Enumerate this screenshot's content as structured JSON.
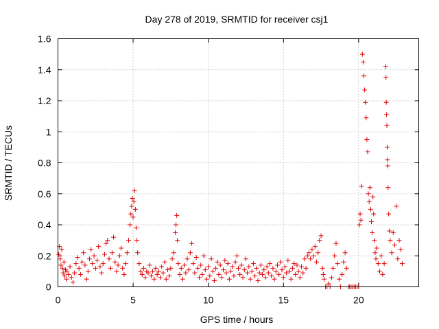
{
  "chart_data": {
    "type": "scatter",
    "title": "Day 278 of 2019, SRMTID for receiver csj1",
    "xlabel": "GPS time / hours",
    "ylabel": "SRMTID / TECUs",
    "xlim": [
      0,
      24
    ],
    "ylim": [
      0,
      1.6
    ],
    "xticks": [
      0,
      5,
      10,
      15,
      20
    ],
    "xtick_labels": [
      "0",
      "5",
      "10",
      "15",
      "20"
    ],
    "yticks": [
      0,
      0.2,
      0.4,
      0.6,
      0.8,
      1.0,
      1.2,
      1.4,
      1.6
    ],
    "ytick_labels": [
      "0",
      "0.2",
      "0.4",
      "0.6",
      "0.8",
      "1",
      "1.2",
      "1.4",
      "1.6"
    ],
    "grid": true,
    "marker": "plus",
    "color": "#e00000",
    "series": [
      {
        "name": "SRMTID",
        "points": [
          [
            0.05,
            0.21
          ],
          [
            0.1,
            0.26
          ],
          [
            0.15,
            0.18
          ],
          [
            0.2,
            0.14
          ],
          [
            0.25,
            0.24
          ],
          [
            0.3,
            0.12
          ],
          [
            0.35,
            0.09
          ],
          [
            0.4,
            0.16
          ],
          [
            0.45,
            0.07
          ],
          [
            0.5,
            0.11
          ],
          [
            0.55,
            0.05
          ],
          [
            0.6,
            0.1
          ],
          [
            0.7,
            0.08
          ],
          [
            0.8,
            0.13
          ],
          [
            0.9,
            0.06
          ],
          [
            1.0,
            0.03
          ],
          [
            1.1,
            0.09
          ],
          [
            1.2,
            0.15
          ],
          [
            1.3,
            0.19
          ],
          [
            1.4,
            0.12
          ],
          [
            1.5,
            0.08
          ],
          [
            1.6,
            0.16
          ],
          [
            1.7,
            0.22
          ],
          [
            1.8,
            0.14
          ],
          [
            1.9,
            0.05
          ],
          [
            2.0,
            0.1
          ],
          [
            2.1,
            0.18
          ],
          [
            2.2,
            0.24
          ],
          [
            2.3,
            0.15
          ],
          [
            2.4,
            0.2
          ],
          [
            2.5,
            0.12
          ],
          [
            2.6,
            0.17
          ],
          [
            2.7,
            0.26
          ],
          [
            2.8,
            0.13
          ],
          [
            2.9,
            0.09
          ],
          [
            3.0,
            0.15
          ],
          [
            3.1,
            0.21
          ],
          [
            3.2,
            0.28
          ],
          [
            3.3,
            0.3
          ],
          [
            3.4,
            0.18
          ],
          [
            3.5,
            0.12
          ],
          [
            3.6,
            0.22
          ],
          [
            3.7,
            0.32
          ],
          [
            3.8,
            0.16
          ],
          [
            3.9,
            0.1
          ],
          [
            4.0,
            0.14
          ],
          [
            4.1,
            0.2
          ],
          [
            4.2,
            0.25
          ],
          [
            4.3,
            0.12
          ],
          [
            4.4,
            0.08
          ],
          [
            4.5,
            0.15
          ],
          [
            4.6,
            0.22
          ],
          [
            4.7,
            0.3
          ],
          [
            4.8,
            0.4
          ],
          [
            4.85,
            0.47
          ],
          [
            4.9,
            0.52
          ],
          [
            4.95,
            0.57
          ],
          [
            5.0,
            0.45
          ],
          [
            5.05,
            0.55
          ],
          [
            5.1,
            0.62
          ],
          [
            5.15,
            0.5
          ],
          [
            5.2,
            0.38
          ],
          [
            5.25,
            0.3
          ],
          [
            5.3,
            0.22
          ],
          [
            5.4,
            0.15
          ],
          [
            5.5,
            0.1
          ],
          [
            5.6,
            0.08
          ],
          [
            5.7,
            0.12
          ],
          [
            5.8,
            0.06
          ],
          [
            5.9,
            0.1
          ],
          [
            6.0,
            0.09
          ],
          [
            6.1,
            0.14
          ],
          [
            6.2,
            0.07
          ],
          [
            6.3,
            0.1
          ],
          [
            6.4,
            0.05
          ],
          [
            6.5,
            0.12
          ],
          [
            6.6,
            0.08
          ],
          [
            6.7,
            0.1
          ],
          [
            6.8,
            0.06
          ],
          [
            6.9,
            0.13
          ],
          [
            7.0,
            0.09
          ],
          [
            7.1,
            0.16
          ],
          [
            7.2,
            0.05
          ],
          [
            7.3,
            0.11
          ],
          [
            7.4,
            0.07
          ],
          [
            7.5,
            0.12
          ],
          [
            7.6,
            0.18
          ],
          [
            7.7,
            0.22
          ],
          [
            7.8,
            0.35
          ],
          [
            7.85,
            0.4
          ],
          [
            7.9,
            0.46
          ],
          [
            7.95,
            0.3
          ],
          [
            8.0,
            0.15
          ],
          [
            8.1,
            0.08
          ],
          [
            8.2,
            0.12
          ],
          [
            8.3,
            0.05
          ],
          [
            8.4,
            0.14
          ],
          [
            8.5,
            0.09
          ],
          [
            8.6,
            0.18
          ],
          [
            8.7,
            0.11
          ],
          [
            8.8,
            0.22
          ],
          [
            8.9,
            0.28
          ],
          [
            9.0,
            0.15
          ],
          [
            9.1,
            0.09
          ],
          [
            9.2,
            0.19
          ],
          [
            9.3,
            0.12
          ],
          [
            9.4,
            0.06
          ],
          [
            9.5,
            0.14
          ],
          [
            9.6,
            0.08
          ],
          [
            9.7,
            0.2
          ],
          [
            9.8,
            0.11
          ],
          [
            9.9,
            0.05
          ],
          [
            10.0,
            0.13
          ],
          [
            10.1,
            0.07
          ],
          [
            10.2,
            0.18
          ],
          [
            10.3,
            0.1
          ],
          [
            10.4,
            0.04
          ],
          [
            10.5,
            0.12
          ],
          [
            10.6,
            0.16
          ],
          [
            10.7,
            0.08
          ],
          [
            10.8,
            0.14
          ],
          [
            10.9,
            0.06
          ],
          [
            11.0,
            0.11
          ],
          [
            11.1,
            0.17
          ],
          [
            11.2,
            0.09
          ],
          [
            11.3,
            0.15
          ],
          [
            11.4,
            0.05
          ],
          [
            11.5,
            0.1
          ],
          [
            11.6,
            0.13
          ],
          [
            11.7,
            0.07
          ],
          [
            11.8,
            0.16
          ],
          [
            11.9,
            0.2
          ],
          [
            12.0,
            0.12
          ],
          [
            12.1,
            0.08
          ],
          [
            12.2,
            0.14
          ],
          [
            12.3,
            0.06
          ],
          [
            12.4,
            0.11
          ],
          [
            12.5,
            0.18
          ],
          [
            12.6,
            0.09
          ],
          [
            12.7,
            0.13
          ],
          [
            12.8,
            0.05
          ],
          [
            12.9,
            0.1
          ],
          [
            13.0,
            0.15
          ],
          [
            13.1,
            0.07
          ],
          [
            13.2,
            0.12
          ],
          [
            13.3,
            0.04
          ],
          [
            13.4,
            0.09
          ],
          [
            13.5,
            0.14
          ],
          [
            13.6,
            0.08
          ],
          [
            13.7,
            0.11
          ],
          [
            13.8,
            0.06
          ],
          [
            13.9,
            0.13
          ],
          [
            14.0,
            0.09
          ],
          [
            14.1,
            0.15
          ],
          [
            14.2,
            0.07
          ],
          [
            14.3,
            0.12
          ],
          [
            14.4,
            0.05
          ],
          [
            14.5,
            0.1
          ],
          [
            14.6,
            0.14
          ],
          [
            14.7,
            0.08
          ],
          [
            14.8,
            0.16
          ],
          [
            14.9,
            0.11
          ],
          [
            15.0,
            0.06
          ],
          [
            15.1,
            0.13
          ],
          [
            15.2,
            0.09
          ],
          [
            15.3,
            0.17
          ],
          [
            15.4,
            0.1
          ],
          [
            15.5,
            0.05
          ],
          [
            15.6,
            0.12
          ],
          [
            15.7,
            0.15
          ],
          [
            15.8,
            0.08
          ],
          [
            15.9,
            0.14
          ],
          [
            16.0,
            0.1
          ],
          [
            16.1,
            0.06
          ],
          [
            16.2,
            0.13
          ],
          [
            16.3,
            0.09
          ],
          [
            16.4,
            0.18
          ],
          [
            16.5,
            0.12
          ],
          [
            16.6,
            0.2
          ],
          [
            16.7,
            0.22
          ],
          [
            16.8,
            0.18
          ],
          [
            16.9,
            0.24
          ],
          [
            17.0,
            0.2
          ],
          [
            17.1,
            0.26
          ],
          [
            17.2,
            0.16
          ],
          [
            17.3,
            0.22
          ],
          [
            17.4,
            0.3
          ],
          [
            17.5,
            0.33
          ],
          [
            17.6,
            0.12
          ],
          [
            17.65,
            0.08
          ],
          [
            17.7,
            0.05
          ],
          [
            17.8,
            0.0
          ],
          [
            17.9,
            0.0
          ],
          [
            18.0,
            0.02
          ],
          [
            18.1,
            0.0
          ],
          [
            18.2,
            0.06
          ],
          [
            18.3,
            0.12
          ],
          [
            18.4,
            0.2
          ],
          [
            18.5,
            0.28
          ],
          [
            18.6,
            0.15
          ],
          [
            18.7,
            0.05
          ],
          [
            18.8,
            0.0
          ],
          [
            18.9,
            0.08
          ],
          [
            19.0,
            0.16
          ],
          [
            19.1,
            0.22
          ],
          [
            19.2,
            0.12
          ],
          [
            19.3,
            0.0
          ],
          [
            19.4,
            0.0
          ],
          [
            19.5,
            0.0
          ],
          [
            19.6,
            0.0
          ],
          [
            19.7,
            0.0
          ],
          [
            19.8,
            0.0
          ],
          [
            19.9,
            0.0
          ],
          [
            20.0,
            0.0
          ],
          [
            20.05,
            0.4
          ],
          [
            20.1,
            0.47
          ],
          [
            20.15,
            0.43
          ],
          [
            20.2,
            0.65
          ],
          [
            20.25,
            1.5
          ],
          [
            20.3,
            1.45
          ],
          [
            20.35,
            1.36
          ],
          [
            20.4,
            1.27
          ],
          [
            20.45,
            1.19
          ],
          [
            20.5,
            1.09
          ],
          [
            20.55,
            0.95
          ],
          [
            20.6,
            0.87
          ],
          [
            20.65,
            0.6
          ],
          [
            20.7,
            0.55
          ],
          [
            20.75,
            0.64
          ],
          [
            20.8,
            0.5
          ],
          [
            20.85,
            0.42
          ],
          [
            20.9,
            0.35
          ],
          [
            20.95,
            0.58
          ],
          [
            21.0,
            0.47
          ],
          [
            21.05,
            0.3
          ],
          [
            21.1,
            0.22
          ],
          [
            21.15,
            0.18
          ],
          [
            21.2,
            0.25
          ],
          [
            21.3,
            0.15
          ],
          [
            21.4,
            0.1
          ],
          [
            21.5,
            0.2
          ],
          [
            21.6,
            0.08
          ],
          [
            21.7,
            0.15
          ],
          [
            21.8,
            1.42
          ],
          [
            21.82,
            1.35
          ],
          [
            21.84,
            1.19
          ],
          [
            21.86,
            1.11
          ],
          [
            21.88,
            1.04
          ],
          [
            21.9,
            0.9
          ],
          [
            21.92,
            0.82
          ],
          [
            21.94,
            0.78
          ],
          [
            21.96,
            0.64
          ],
          [
            22.0,
            0.47
          ],
          [
            22.05,
            0.36
          ],
          [
            22.1,
            0.3
          ],
          [
            22.2,
            0.22
          ],
          [
            22.3,
            0.35
          ],
          [
            22.4,
            0.27
          ],
          [
            22.5,
            0.52
          ],
          [
            22.6,
            0.18
          ],
          [
            22.7,
            0.3
          ],
          [
            22.8,
            0.24
          ],
          [
            22.9,
            0.15
          ]
        ]
      }
    ]
  }
}
